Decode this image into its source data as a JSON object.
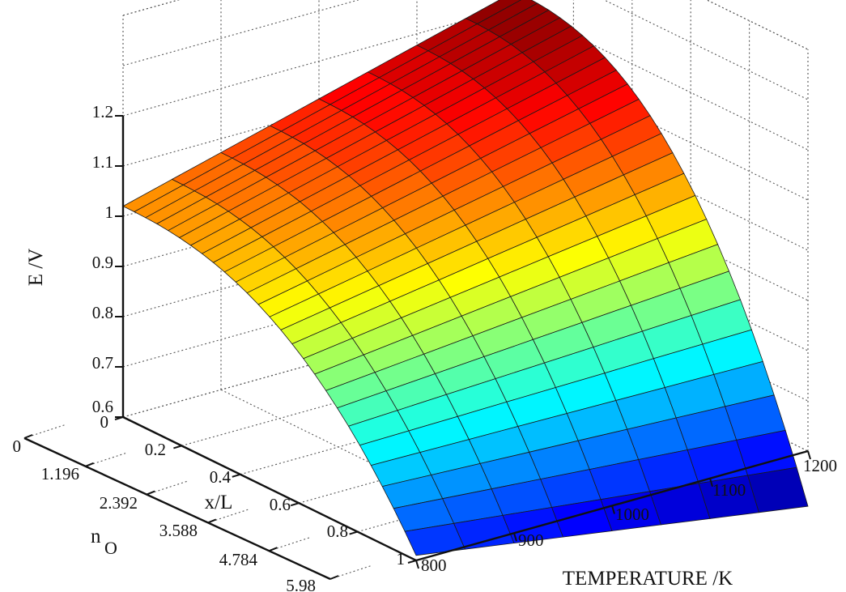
{
  "chart_data": {
    "type": "surface",
    "zlabel": "E /V",
    "xlabel": "x/L",
    "ylabel": "TEMPERATURE /K",
    "nlabel_main": "n",
    "nlabel_sub": "O",
    "z_ticks": [
      "0.6",
      "0.7",
      "0.8",
      "0.9",
      "1",
      "1.1",
      "1.2"
    ],
    "z_values": [
      0.6,
      0.7,
      0.8,
      0.9,
      1.0,
      1.1,
      1.2
    ],
    "x_ticks": [
      "0",
      "0.2",
      "0.4",
      "0.6",
      "0.8",
      "1"
    ],
    "x_values": [
      0,
      0.2,
      0.4,
      0.6,
      0.8,
      1.0
    ],
    "n_ticks": [
      "0",
      "1.196",
      "2.392",
      "3.588",
      "4.784",
      "5.98"
    ],
    "t_ticks": [
      "800",
      "900",
      "1000",
      "1100",
      "1200"
    ],
    "t_values": [
      800,
      900,
      1000,
      1100,
      1200
    ],
    "zlim": [
      0.6,
      1.2
    ],
    "xlim": [
      0,
      1
    ],
    "tlim": [
      800,
      1200
    ],
    "grid": true,
    "colormap": "jet",
    "corner_values": [
      {
        "x": 0,
        "T": 800,
        "E": 1.02
      },
      {
        "x": 0,
        "T": 1200,
        "E": 1.23
      },
      {
        "x": 1,
        "T": 800,
        "E": 0.61
      },
      {
        "x": 1,
        "T": 1200,
        "E": 0.49
      }
    ]
  }
}
